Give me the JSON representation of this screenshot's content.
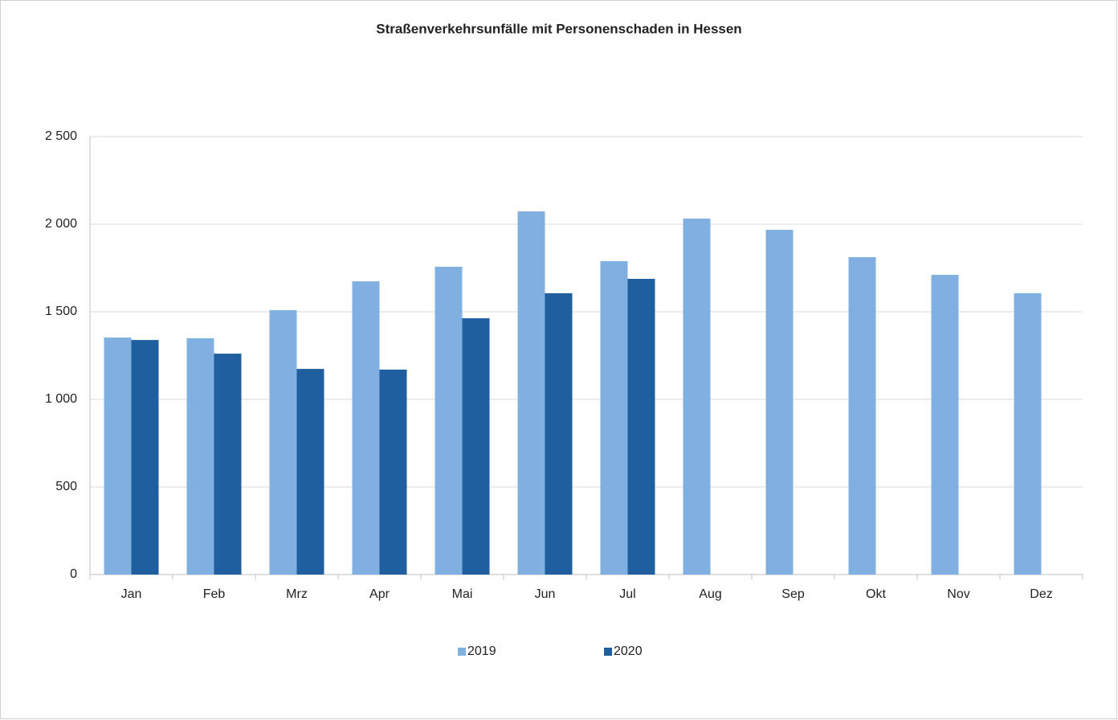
{
  "chart_data": {
    "type": "bar",
    "title": "Straßenverkehrsunfälle mit Personenschaden in Hessen",
    "categories": [
      "Jan",
      "Feb",
      "Mrz",
      "Apr",
      "Mai",
      "Jun",
      "Jul",
      "Aug",
      "Sep",
      "Okt",
      "Nov",
      "Dez"
    ],
    "series": [
      {
        "name": "2019",
        "color": "#7fb0df",
        "values": [
          1353,
          1349,
          1509,
          1674,
          1757,
          2073,
          1789,
          2032,
          1968,
          1812,
          1711,
          1606
        ]
      },
      {
        "name": "2020",
        "color": "#1f5f9f",
        "values": [
          1339,
          1261,
          1174,
          1170,
          1463,
          1606,
          1688,
          null,
          null,
          null,
          null,
          null
        ]
      }
    ],
    "ylim": [
      0,
      2500
    ],
    "yticks": [
      0,
      500,
      {
        "value": 1000,
        "label": "1 000"
      },
      {
        "value": 1500,
        "label": "1 500"
      },
      {
        "value": 2000,
        "label": "2 000"
      },
      {
        "value": 2500,
        "label": "2 500"
      }
    ],
    "grid": true,
    "legend": "bottom"
  }
}
